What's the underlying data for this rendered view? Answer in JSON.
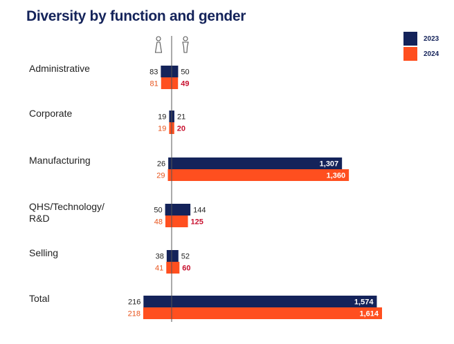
{
  "chart_data": {
    "type": "bar",
    "title": "Diversity by function and gender",
    "series": [
      {
        "name": "2023",
        "color": "#14235a"
      },
      {
        "name": "2024",
        "color": "#ff4f1f"
      }
    ],
    "gender_icons": [
      "female-icon",
      "male-icon"
    ],
    "categories": [
      "Administrative",
      "Corporate",
      "Manufacturing",
      "QHS/Technology/\nR&D",
      "Selling",
      "Total"
    ],
    "data": [
      {
        "female": {
          "2023": 83,
          "2024": 81
        },
        "male": {
          "2023": 50,
          "2024": 49
        }
      },
      {
        "female": {
          "2023": 19,
          "2024": 19
        },
        "male": {
          "2023": 21,
          "2024": 20
        }
      },
      {
        "female": {
          "2023": 26,
          "2024": 29
        },
        "male": {
          "2023": 1307,
          "2024": 1360
        }
      },
      {
        "female": {
          "2023": 50,
          "2024": 48
        },
        "male": {
          "2023": 144,
          "2024": 125
        }
      },
      {
        "female": {
          "2023": 38,
          "2024": 41
        },
        "male": {
          "2023": 52,
          "2024": 60
        }
      },
      {
        "female": {
          "2023": 216,
          "2024": 218
        },
        "male": {
          "2023": 1574,
          "2024": 1614
        }
      }
    ],
    "value_labels": [
      {
        "female": {
          "2023": "83",
          "2024": "81"
        },
        "male": {
          "2023": "50",
          "2024": "49"
        }
      },
      {
        "female": {
          "2023": "19",
          "2024": "19"
        },
        "male": {
          "2023": "21",
          "2024": "20"
        }
      },
      {
        "female": {
          "2023": "26",
          "2024": "29"
        },
        "male": {
          "2023": "1,307",
          "2024": "1,360"
        }
      },
      {
        "female": {
          "2023": "50",
          "2024": "48"
        },
        "male": {
          "2023": "144",
          "2024": "125"
        }
      },
      {
        "female": {
          "2023": "38",
          "2024": "41"
        },
        "male": {
          "2023": "52",
          "2024": "60"
        }
      },
      {
        "female": {
          "2023": "216",
          "2024": "218"
        },
        "male": {
          "2023": "1,574",
          "2024": "1,614"
        }
      }
    ],
    "legend_position": "top-right",
    "grid": false
  }
}
